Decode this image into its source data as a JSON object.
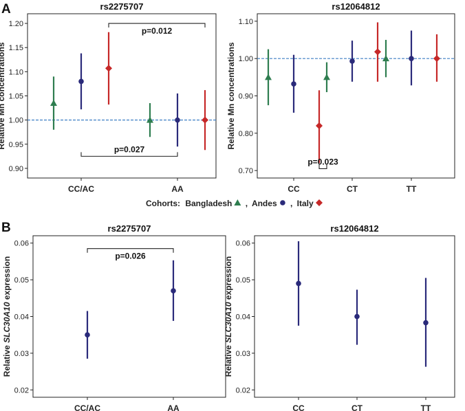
{
  "figure": {
    "panel_labels": [
      "A",
      "B"
    ],
    "legend": {
      "title": "Cohorts:",
      "entries": [
        {
          "label": "Bangladesh",
          "color": "#2e7d4f",
          "marker": "triangle",
          "sep": ","
        },
        {
          "label": "Andes",
          "color": "#2a2a7a",
          "marker": "circle",
          "sep": ","
        },
        {
          "label": "Italy",
          "color": "#c62828",
          "marker": "diamond",
          "sep": ""
        }
      ]
    }
  },
  "chart_data": [
    {
      "type": "scatter",
      "title": "rs2275707",
      "ylabel": "Relative Mn  concentrations",
      "ylim": [
        0.88,
        1.22
      ],
      "yticks": [
        "0.90",
        "0.95",
        "1.00",
        "1.05",
        "1.10",
        "1.15",
        "1.20"
      ],
      "categories": [
        "CC/AC",
        "AA"
      ],
      "reference_line": 1.0,
      "series": [
        {
          "name": "Bangladesh",
          "color": "#2e7d4f",
          "marker": "triangle",
          "points": [
            {
              "cat": 0,
              "y": 1.035,
              "lo": 0.98,
              "hi": 1.09
            },
            {
              "cat": 1,
              "y": 1.0,
              "lo": 0.965,
              "hi": 1.035
            }
          ]
        },
        {
          "name": "Andes",
          "color": "#2a2a7a",
          "marker": "circle",
          "points": [
            {
              "cat": 0,
              "y": 1.08,
              "lo": 1.022,
              "hi": 1.138
            },
            {
              "cat": 1,
              "y": 1.0,
              "lo": 0.945,
              "hi": 1.055
            }
          ]
        },
        {
          "name": "Italy",
          "color": "#c62828",
          "marker": "diamond",
          "points": [
            {
              "cat": 0,
              "y": 1.107,
              "lo": 1.032,
              "hi": 1.182
            },
            {
              "cat": 1,
              "y": 1.0,
              "lo": 0.938,
              "hi": 1.062
            }
          ]
        }
      ],
      "annotations": [
        {
          "label": "p=0.012",
          "x1": [
            0,
            2
          ],
          "x2": [
            1,
            2
          ],
          "y": 1.2,
          "dir": "down"
        },
        {
          "label": "p=0.027",
          "x1": [
            0,
            1
          ],
          "x2": [
            1,
            1
          ],
          "y": 0.925,
          "dir": "up"
        }
      ]
    },
    {
      "type": "scatter",
      "title": "rs12064812",
      "ylabel": "Relative Mn  concentrations",
      "ylim": [
        0.68,
        1.12
      ],
      "yticks": [
        "0.70",
        "0.80",
        "0.90",
        "1.00",
        "1.10"
      ],
      "categories": [
        "CC",
        "CT",
        "TT"
      ],
      "reference_line": 1.0,
      "series": [
        {
          "name": "Bangladesh",
          "color": "#2e7d4f",
          "marker": "triangle",
          "points": [
            {
              "cat": 0,
              "y": 0.95,
              "lo": 0.875,
              "hi": 1.025
            },
            {
              "cat": 1,
              "y": 0.95,
              "lo": 0.91,
              "hi": 0.99
            },
            {
              "cat": 2,
              "y": 1.0,
              "lo": 0.95,
              "hi": 1.05
            }
          ]
        },
        {
          "name": "Andes",
          "color": "#2a2a7a",
          "marker": "circle",
          "points": [
            {
              "cat": 0,
              "y": 0.932,
              "lo": 0.855,
              "hi": 1.01
            },
            {
              "cat": 1,
              "y": 0.993,
              "lo": 0.938,
              "hi": 1.048
            },
            {
              "cat": 2,
              "y": 1.0,
              "lo": 0.928,
              "hi": 1.075
            }
          ]
        },
        {
          "name": "Italy",
          "color": "#c62828",
          "marker": "diamond",
          "points": [
            {
              "cat": 0,
              "y": 0.82,
              "lo": 0.72,
              "hi": 0.915
            },
            {
              "cat": 1,
              "y": 1.018,
              "lo": 0.938,
              "hi": 1.097
            },
            {
              "cat": 2,
              "y": 1.0,
              "lo": 0.938,
              "hi": 1.065
            }
          ]
        }
      ],
      "annotations": [
        {
          "label": "p=0.023",
          "x1": [
            0,
            2
          ],
          "x2": [
            1,
            0
          ],
          "y": 0.705,
          "dir": "up"
        }
      ]
    },
    {
      "type": "scatter",
      "title": "rs2275707",
      "ylabel_parts": [
        "Relative ",
        "SLC30A10",
        " expression"
      ],
      "ylim": [
        0.018,
        0.062
      ],
      "yticks": [
        "0.02",
        "0.03",
        "0.04",
        "0.05",
        "0.06"
      ],
      "categories": [
        "CC/AC",
        "AA"
      ],
      "series": [
        {
          "name": "Andes",
          "color": "#2a2a7a",
          "marker": "circle",
          "points": [
            {
              "cat": 0,
              "y": 0.035,
              "lo": 0.0285,
              "hi": 0.0415
            },
            {
              "cat": 1,
              "y": 0.047,
              "lo": 0.0388,
              "hi": 0.0553
            }
          ]
        }
      ],
      "annotations": [
        {
          "label": "p=0.026",
          "x1": [
            0,
            1
          ],
          "x2": [
            1,
            1
          ],
          "y": 0.0585,
          "dir": "down"
        }
      ]
    },
    {
      "type": "scatter",
      "title": "rs12064812",
      "ylabel_parts": [
        "Relative ",
        "SLC30A10",
        " expression"
      ],
      "ylim": [
        0.018,
        0.062
      ],
      "yticks": [
        "0.02",
        "0.03",
        "0.04",
        "0.05",
        "0.06"
      ],
      "categories": [
        "CC",
        "CT",
        "TT"
      ],
      "series": [
        {
          "name": "Andes",
          "color": "#2a2a7a",
          "marker": "circle",
          "points": [
            {
              "cat": 0,
              "y": 0.049,
              "lo": 0.0375,
              "hi": 0.0605
            },
            {
              "cat": 1,
              "y": 0.04,
              "lo": 0.0323,
              "hi": 0.0473
            },
            {
              "cat": 2,
              "y": 0.0383,
              "lo": 0.0263,
              "hi": 0.0505
            }
          ]
        }
      ],
      "annotations": []
    }
  ]
}
